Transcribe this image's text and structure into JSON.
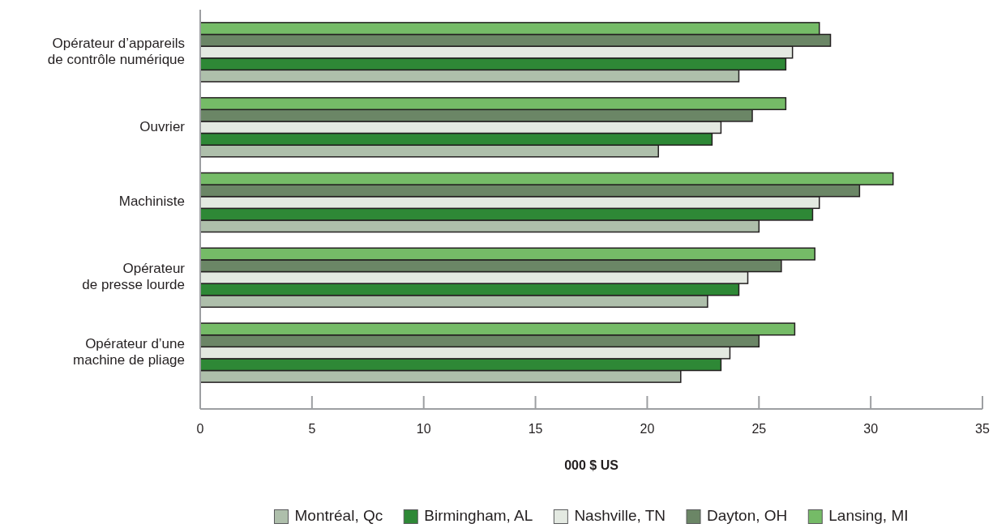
{
  "chart_data": {
    "type": "bar",
    "orientation": "horizontal",
    "categories": [
      "Opérateur d’appareils\nde contrôle numérique",
      "Ouvrier",
      "Machiniste",
      "Opérateur\nde presse lourde",
      "Opérateur d’une\nmachine de pliage"
    ],
    "series": [
      {
        "name": "Montréal, Qc",
        "color": "#aebfab",
        "values": [
          24.1,
          20.5,
          25.0,
          22.7,
          21.5
        ]
      },
      {
        "name": "Birmingham, AL",
        "color": "#2e8836",
        "values": [
          26.2,
          22.9,
          27.4,
          24.1,
          23.3
        ]
      },
      {
        "name": "Nashville, TN",
        "color": "#e3e9e1",
        "values": [
          26.5,
          23.3,
          27.7,
          24.5,
          23.7
        ]
      },
      {
        "name": "Dayton, OH",
        "color": "#6b8666",
        "values": [
          28.2,
          24.7,
          29.5,
          26.0,
          25.0
        ]
      },
      {
        "name": "Lansing, MI",
        "color": "#75bb67",
        "values": [
          27.7,
          26.2,
          31.0,
          27.5,
          26.6
        ]
      }
    ],
    "xlabel": "000 $ US",
    "xlim": [
      0,
      35
    ],
    "xticks": [
      0,
      5,
      10,
      15,
      20,
      25,
      30,
      35
    ],
    "legend": "bottom"
  }
}
